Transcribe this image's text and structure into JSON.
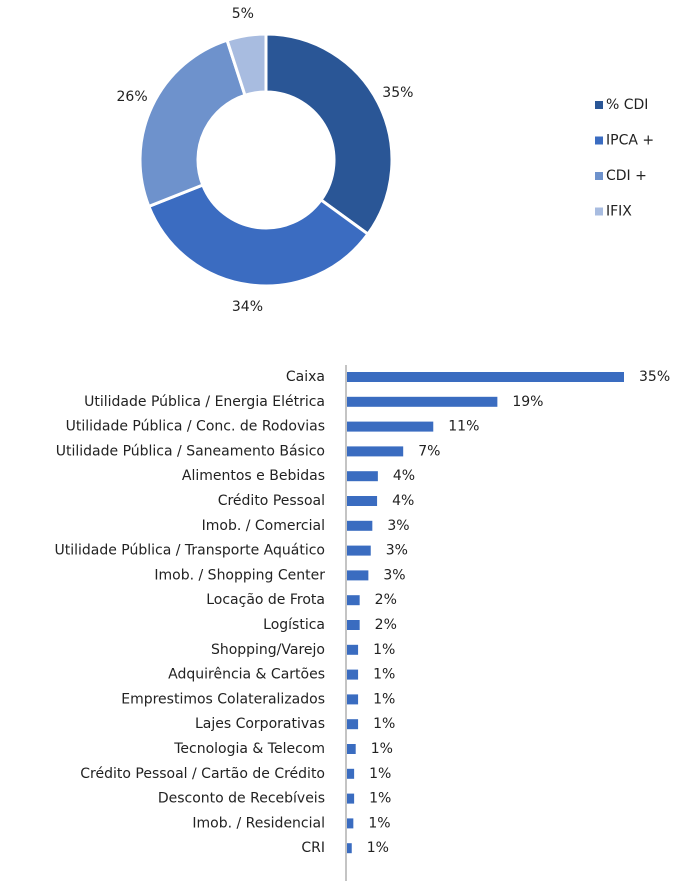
{
  "chart_data": [
    {
      "type": "donut",
      "categories": [
        "% CDI",
        "IPCA +",
        "CDI +",
        "IFIX"
      ],
      "values": [
        35,
        34,
        26,
        5
      ],
      "value_labels": [
        "35%",
        "34%",
        "26%",
        "5%"
      ],
      "colors": [
        "#2a5696",
        "#3b6cc1",
        "#6e92cc",
        "#a8bce0"
      ],
      "legend": "right"
    },
    {
      "type": "hbar",
      "categories": [
        "Caixa",
        "Utilidade Pública / Energia Elétrica",
        "Utilidade Pública / Conc. de Rodovias",
        "Utilidade Pública / Saneamento Básico",
        "Alimentos e Bebidas",
        "Crédito Pessoal",
        "Imob. / Comercial",
        "Utilidade Pública / Transporte Aquático",
        "Imob. / Shopping Center",
        "Locação de Frota",
        "Logística",
        "Shopping/Varejo",
        "Adquirência & Cartões",
        "Emprestimos Colateralizados",
        "Lajes Corporativas",
        "Tecnologia & Telecom",
        "Crédito Pessoal / Cartão de Crédito",
        "Desconto de Recebíveis",
        "Imob. / Residencial",
        "CRI"
      ],
      "values": [
        35,
        19,
        10.9,
        7.1,
        3.9,
        3.8,
        3.2,
        3.0,
        2.7,
        1.6,
        1.6,
        1.4,
        1.4,
        1.4,
        1.4,
        1.1,
        0.9,
        0.9,
        0.8,
        0.6
      ],
      "value_labels": [
        "35%",
        "19%",
        "11%",
        "7%",
        "4%",
        "4%",
        "3%",
        "3%",
        "3%",
        "2%",
        "2%",
        "1%",
        "1%",
        "1%",
        "1%",
        "1%",
        "1%",
        "1%",
        "1%",
        "1%"
      ],
      "color": "#3a6cc0",
      "xlim": [
        0,
        35
      ]
    }
  ]
}
